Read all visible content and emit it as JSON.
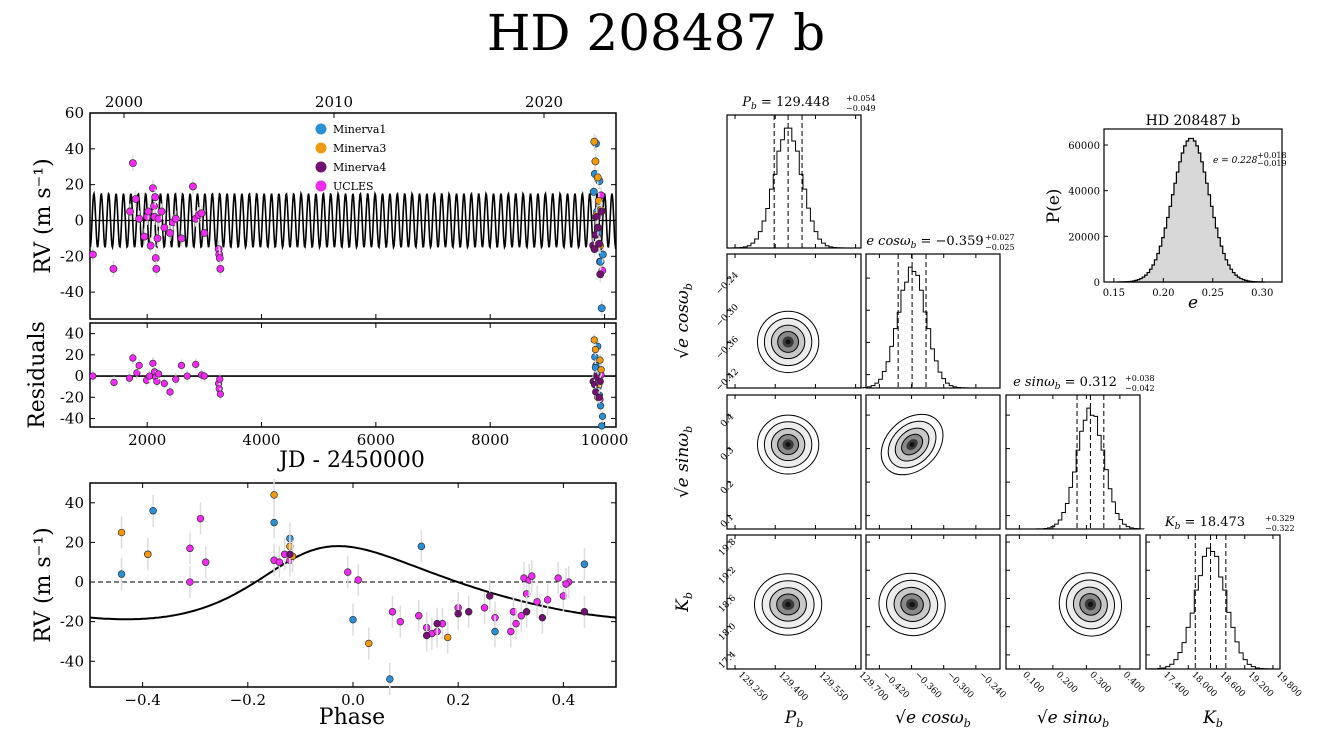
{
  "title": "HD 208487 b",
  "colors": {
    "minerva1": "#2b8fd6",
    "minerva3": "#f09a11",
    "minerva4": "#731173",
    "ucles": "#ee2bee",
    "model": "#000000",
    "errorbar": "#dddddd",
    "hist_fill": "#d8d8d8"
  },
  "chart_data": [
    {
      "type": "scatter",
      "name": "rv-time-series",
      "ylabel": "RV (m s⁻¹)",
      "ylim": [
        -55,
        60
      ],
      "yticks": [
        -40,
        -20,
        0,
        20,
        40,
        60
      ],
      "top_axis_years": [
        "2000",
        "2010",
        "2020"
      ],
      "legend": [
        "Minerva1",
        "Minerva3",
        "Minerva4",
        "UCLES"
      ],
      "model": {
        "period": 129.448,
        "amplitude": 15,
        "offset": 0
      },
      "series": [
        {
          "name": "UCLES",
          "points": [
            [
              1050,
              -19
            ],
            [
              1410,
              -27
            ],
            [
              1700,
              5
            ],
            [
              1750,
              32
            ],
            [
              1800,
              12
            ],
            [
              1860,
              1
            ],
            [
              1950,
              -9
            ],
            [
              2000,
              2
            ],
            [
              2020,
              5
            ],
            [
              2060,
              -14
            ],
            [
              2100,
              18
            ],
            [
              2120,
              8
            ],
            [
              2130,
              2
            ],
            [
              2140,
              13
            ],
            [
              2150,
              -21
            ],
            [
              2160,
              -27
            ],
            [
              2180,
              -10
            ],
            [
              2200,
              1
            ],
            [
              2250,
              5
            ],
            [
              2300,
              -4
            ],
            [
              2400,
              -7
            ],
            [
              2450,
              -1
            ],
            [
              2500,
              1
            ],
            [
              2600,
              -10
            ],
            [
              2800,
              19
            ],
            [
              2850,
              1
            ],
            [
              2900,
              3
            ],
            [
              2950,
              4
            ],
            [
              3000,
              -7
            ],
            [
              3250,
              -16
            ],
            [
              3260,
              -19
            ],
            [
              3270,
              -21
            ],
            [
              3280,
              -27
            ],
            [
              9850,
              2
            ],
            [
              9880,
              -4
            ],
            [
              9900,
              -15
            ],
            [
              9920,
              -23
            ],
            [
              9940,
              14
            ],
            [
              9960,
              -28
            ]
          ]
        },
        {
          "name": "Minerva1",
          "points": [
            [
              9810,
              16
            ],
            [
              9830,
              26
            ],
            [
              9850,
              43
            ],
            [
              9870,
              5
            ],
            [
              9890,
              -7
            ],
            [
              9910,
              22
            ],
            [
              9930,
              -23
            ],
            [
              9950,
              -49
            ],
            [
              9970,
              -19
            ]
          ]
        },
        {
          "name": "Minerva3",
          "points": [
            [
              9820,
              44
            ],
            [
              9840,
              33
            ],
            [
              9860,
              3
            ],
            [
              9880,
              24
            ],
            [
              9900,
              11
            ],
            [
              9920,
              -14
            ],
            [
              9940,
              6
            ]
          ]
        },
        {
          "name": "Minerva4",
          "points": [
            [
              9800,
              -14
            ],
            [
              9825,
              -16
            ],
            [
              9845,
              -8
            ],
            [
              9865,
              2
            ],
            [
              9885,
              -4
            ],
            [
              9905,
              -13
            ],
            [
              9925,
              -30
            ],
            [
              9945,
              5
            ]
          ]
        }
      ]
    },
    {
      "type": "scatter",
      "name": "residuals",
      "xlabel": "JD - 2450000",
      "ylabel": "Residuals",
      "xlim": [
        1000,
        10200
      ],
      "xticks": [
        2000,
        4000,
        6000,
        8000,
        10000
      ],
      "ylim": [
        -48,
        50
      ],
      "yticks": [
        -40,
        -20,
        0,
        20,
        40
      ],
      "series": [
        {
          "name": "UCLES",
          "points": [
            [
              1050,
              0
            ],
            [
              1420,
              -6
            ],
            [
              1690,
              -2
            ],
            [
              1750,
              17
            ],
            [
              1820,
              3
            ],
            [
              1860,
              10
            ],
            [
              1990,
              -4
            ],
            [
              2040,
              0
            ],
            [
              2100,
              12
            ],
            [
              2130,
              4
            ],
            [
              2150,
              -1
            ],
            [
              2170,
              -5
            ],
            [
              2200,
              2
            ],
            [
              2300,
              -7
            ],
            [
              2400,
              -15
            ],
            [
              2500,
              -3
            ],
            [
              2600,
              10
            ],
            [
              2700,
              0
            ],
            [
              2850,
              11
            ],
            [
              2950,
              1
            ],
            [
              3000,
              0
            ],
            [
              3250,
              -7
            ],
            [
              3260,
              -12
            ],
            [
              3280,
              -17
            ],
            [
              3270,
              -3
            ],
            [
              9860,
              -10
            ],
            [
              9900,
              5
            ],
            [
              9920,
              -22
            ],
            [
              9940,
              1
            ]
          ]
        },
        {
          "name": "Minerva1",
          "points": [
            [
              9830,
              18
            ],
            [
              9850,
              10
            ],
            [
              9870,
              2
            ],
            [
              9890,
              -10
            ],
            [
              9910,
              -18
            ],
            [
              9930,
              -28
            ],
            [
              9950,
              -47
            ],
            [
              9965,
              -38
            ],
            [
              9880,
              28
            ],
            [
              9840,
              8
            ]
          ]
        },
        {
          "name": "Minerva3",
          "points": [
            [
              9820,
              34
            ],
            [
              9840,
              25
            ],
            [
              9860,
              -4
            ],
            [
              9880,
              -20
            ],
            [
              9900,
              -8
            ],
            [
              9920,
              15
            ],
            [
              9940,
              6
            ]
          ]
        },
        {
          "name": "Minerva4",
          "points": [
            [
              9800,
              -5
            ],
            [
              9825,
              -8
            ],
            [
              9845,
              -15
            ],
            [
              9865,
              0
            ],
            [
              9885,
              -2
            ],
            [
              9905,
              -20
            ],
            [
              9925,
              -5
            ]
          ]
        }
      ]
    },
    {
      "type": "scatter",
      "name": "phase-folded",
      "xlabel": "Phase",
      "ylabel": "RV (m s⁻¹)",
      "xlim": [
        -0.5,
        0.5
      ],
      "xticks": [
        -0.4,
        -0.2,
        0.0,
        0.2,
        0.4
      ],
      "xtick_labels": [
        "−0.4",
        "−0.2",
        "0.0",
        "0.2",
        "0.4"
      ],
      "ylim": [
        -53,
        50
      ],
      "yticks": [
        -40,
        -20,
        0,
        20,
        40
      ],
      "model": {
        "amplitude": 18.473,
        "e": 0.228,
        "omega_deg": -41,
        "offset": -3.5,
        "phase_shift": 0.1
      },
      "series": [
        {
          "name": "UCLES",
          "points": [
            [
              -0.39,
              14
            ],
            [
              -0.31,
              0
            ],
            [
              -0.31,
              17
            ],
            [
              -0.29,
              32
            ],
            [
              -0.28,
              10
            ],
            [
              -0.15,
              11
            ],
            [
              -0.14,
              10
            ],
            [
              -0.13,
              14
            ],
            [
              -0.12,
              11
            ],
            [
              -0.01,
              5
            ],
            [
              0.01,
              1
            ],
            [
              0.075,
              -15
            ],
            [
              0.09,
              -20
            ],
            [
              0.125,
              -17
            ],
            [
              0.14,
              -23
            ],
            [
              0.15,
              -26
            ],
            [
              0.16,
              -25
            ],
            [
              0.17,
              -21
            ],
            [
              0.2,
              -13
            ],
            [
              0.25,
              -13
            ],
            [
              0.27,
              -18
            ],
            [
              0.3,
              -25
            ],
            [
              0.305,
              -15
            ],
            [
              0.31,
              -21
            ],
            [
              0.32,
              -17
            ],
            [
              0.325,
              2
            ],
            [
              0.33,
              -6
            ],
            [
              0.335,
              1
            ],
            [
              0.34,
              3
            ],
            [
              0.35,
              -10
            ],
            [
              0.37,
              -9
            ],
            [
              0.39,
              2
            ],
            [
              0.4,
              -7
            ],
            [
              0.41,
              0
            ],
            [
              0.405,
              -1
            ]
          ]
        },
        {
          "name": "Minerva1",
          "points": [
            [
              -0.44,
              4
            ],
            [
              -0.38,
              36
            ],
            [
              -0.15,
              30
            ],
            [
              -0.12,
              22
            ],
            [
              0.0,
              -19
            ],
            [
              0.07,
              -49
            ],
            [
              0.13,
              18
            ],
            [
              0.27,
              -25
            ],
            [
              0.44,
              9
            ]
          ]
        },
        {
          "name": "Minerva3",
          "points": [
            [
              -0.44,
              25
            ],
            [
              -0.39,
              14
            ],
            [
              -0.15,
              44
            ],
            [
              -0.12,
              18
            ],
            [
              -0.115,
              13
            ],
            [
              0.03,
              -31
            ],
            [
              0.18,
              -28
            ]
          ]
        },
        {
          "name": "Minerva4",
          "points": [
            [
              -0.12,
              14
            ],
            [
              0.14,
              -27
            ],
            [
              0.16,
              -21
            ],
            [
              0.2,
              -16
            ],
            [
              0.22,
              -15
            ],
            [
              0.26,
              -7
            ],
            [
              0.33,
              -15
            ],
            [
              0.36,
              -18
            ],
            [
              0.44,
              -15
            ]
          ]
        }
      ]
    },
    {
      "type": "histogram",
      "name": "eccentricity-posterior",
      "title": "HD 208487 b",
      "xlabel": "e",
      "ylabel": "P(e)",
      "xlim": [
        0.14,
        0.32
      ],
      "xticks": [
        0.15,
        0.2,
        0.25,
        0.3
      ],
      "ylim": [
        0,
        67000
      ],
      "yticks": [
        0,
        20000,
        40000,
        60000
      ],
      "annotation": {
        "base": "e = 0.228",
        "sup": "+0.018",
        "sub": "−0.019"
      },
      "mean": 0.228,
      "sigma": 0.0185,
      "peak": 63000,
      "bins": 60
    },
    {
      "type": "corner",
      "name": "posterior-corner",
      "params": [
        {
          "key": "P",
          "label_base": "P",
          "label_sub": "b",
          "value_text": "129.448",
          "sup": "+0.054",
          "sub": "−0.049",
          "mean": 129.448,
          "sigma": 0.052,
          "ticks": [
            129.25,
            129.4,
            129.55,
            129.7
          ],
          "tick_labels": [
            "129.250",
            "129.400",
            "129.550",
            "129.700"
          ],
          "range": [
            129.22,
            129.72
          ]
        },
        {
          "key": "ecos",
          "label_base": "e cosω",
          "label_sub": "b",
          "value_text": "−0.359",
          "sup": "+0.027",
          "sub": "−0.025",
          "mean": -0.359,
          "sigma": 0.026,
          "ticks": [
            -0.42,
            -0.36,
            -0.3,
            -0.24
          ],
          "tick_labels": [
            "−0.420",
            "−0.360",
            "−0.300",
            "−0.240"
          ],
          "range": [
            -0.445,
            -0.195
          ]
        },
        {
          "key": "esin",
          "label_base": "e sinω",
          "label_sub": "b",
          "value_text": "0.312",
          "sup": "+0.038",
          "sub": "−0.042",
          "mean": 0.312,
          "sigma": 0.04,
          "ticks": [
            0.1,
            0.2,
            0.3,
            0.4
          ],
          "tick_labels": [
            "0.100",
            "0.200",
            "0.300",
            "0.400"
          ],
          "range": [
            0.06,
            0.46
          ]
        },
        {
          "key": "K",
          "label_base": "K",
          "label_sub": "b",
          "value_text": "18.473",
          "sup": "+0.329",
          "sub": "−0.322",
          "mean": 18.473,
          "sigma": 0.325,
          "ticks": [
            17.4,
            18.0,
            18.6,
            19.2,
            19.8
          ],
          "tick_labels": [
            "17.400",
            "18.000",
            "18.600",
            "19.200",
            "19.800"
          ],
          "range": [
            17.1,
            19.95
          ]
        }
      ],
      "y_tick_labels": {
        "ecos": [
          "−0.42",
          "−0.36",
          "−0.30",
          "−0.24"
        ],
        "esin": [
          "0.1",
          "0.2",
          "0.3",
          "0.4"
        ],
        "K": [
          "17.4",
          "18.0",
          "18.6",
          "19.2",
          "19.8"
        ]
      },
      "correlations": {
        "ecos_esin": 0.55,
        "esin_K": -0.35,
        "ecos_K": 0.05,
        "P_ecos": 0.0,
        "P_esin": 0.0,
        "P_K": 0.0
      }
    }
  ]
}
